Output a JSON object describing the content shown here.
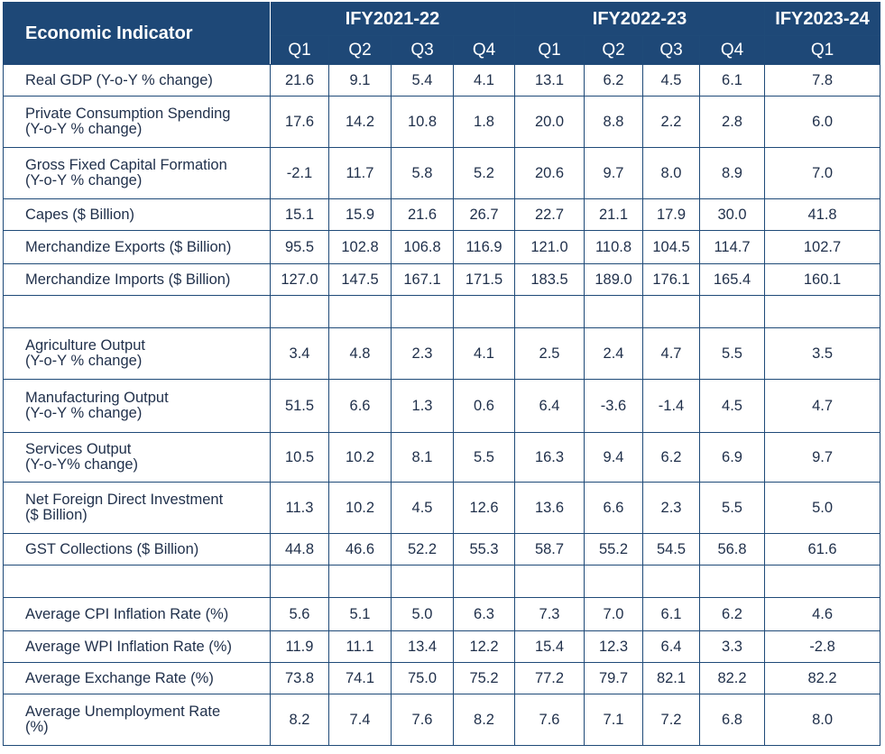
{
  "table": {
    "indicator_header": "Economic Indicator",
    "years": [
      {
        "label": "IFY2021-22",
        "quarters": [
          "Q1",
          "Q2",
          "Q3",
          "Q4"
        ]
      },
      {
        "label": "IFY2022-23",
        "quarters": [
          "Q1",
          "Q2",
          "Q3",
          "Q4"
        ]
      },
      {
        "label": "IFY2023-24",
        "quarters": [
          "Q1"
        ]
      }
    ],
    "rows": [
      {
        "label": [
          "Real GDP (Y-o-Y % change)"
        ],
        "values": [
          "21.6",
          "9.1",
          "5.4",
          "4.1",
          "13.1",
          "6.2",
          "4.5",
          "6.1",
          "7.8"
        ]
      },
      {
        "label": [
          "Private Consumption Spending",
          "(Y-o-Y % change)"
        ],
        "values": [
          "17.6",
          "14.2",
          "10.8",
          "1.8",
          "20.0",
          "8.8",
          "2.2",
          "2.8",
          "6.0"
        ]
      },
      {
        "label": [
          "Gross Fixed Capital Formation",
          "(Y-o-Y % change)"
        ],
        "values": [
          "-2.1",
          "11.7",
          "5.8",
          "5.2",
          "20.6",
          "9.7",
          "8.0",
          "8.9",
          "7.0"
        ]
      },
      {
        "label": [
          "Capes ($ Billion)"
        ],
        "values": [
          "15.1",
          "15.9",
          "21.6",
          "26.7",
          "22.7",
          "21.1",
          "17.9",
          "30.0",
          "41.8"
        ]
      },
      {
        "label": [
          "Merchandize Exports ($ Billion)"
        ],
        "values": [
          "95.5",
          "102.8",
          "106.8",
          "116.9",
          "121.0",
          "110.8",
          "104.5",
          "114.7",
          "102.7"
        ]
      },
      {
        "label": [
          "Merchandize Imports ($ Billion)"
        ],
        "values": [
          "127.0",
          "147.5",
          "167.1",
          "171.5",
          "183.5",
          "189.0",
          "176.1",
          "165.4",
          "160.1"
        ]
      },
      {
        "label": [],
        "values": [
          "",
          "",
          "",
          "",
          "",
          "",
          "",
          "",
          ""
        ]
      },
      {
        "label": [
          "Agriculture Output",
          "(Y-o-Y % change)"
        ],
        "values": [
          "3.4",
          "4.8",
          "2.3",
          "4.1",
          "2.5",
          "2.4",
          "4.7",
          "5.5",
          "3.5"
        ]
      },
      {
        "label": [
          "Manufacturing Output",
          "(Y-o-Y % change)"
        ],
        "values": [
          "51.5",
          "6.6",
          "1.3",
          "0.6",
          "6.4",
          "-3.6",
          "-1.4",
          "4.5",
          "4.7"
        ]
      },
      {
        "label": [
          "Services Output",
          "(Y-o-Y% change)"
        ],
        "values": [
          "10.5",
          "10.2",
          "8.1",
          "5.5",
          "16.3",
          "9.4",
          "6.2",
          "6.9",
          "9.7"
        ]
      },
      {
        "label": [
          "Net Foreign Direct Investment",
          "($ Billion)"
        ],
        "values": [
          "11.3",
          "10.2",
          "4.5",
          "12.6",
          "13.6",
          "6.6",
          "2.3",
          "5.5",
          "5.0"
        ]
      },
      {
        "label": [
          "GST Collections ($ Billion)"
        ],
        "values": [
          "44.8",
          "46.6",
          "52.2",
          "55.3",
          "58.7",
          "55.2",
          "54.5",
          "56.8",
          "61.6"
        ]
      },
      {
        "label": [],
        "values": [
          "",
          "",
          "",
          "",
          "",
          "",
          "",
          "",
          ""
        ]
      },
      {
        "label": [
          "Average CPI Inflation Rate (%)"
        ],
        "values": [
          "5.6",
          "5.1",
          "5.0",
          "6.3",
          "7.3",
          "7.0",
          "6.1",
          "6.2",
          "4.6"
        ]
      },
      {
        "label": [
          "Average WPI Inflation Rate (%)"
        ],
        "values": [
          "11.9",
          "11.1",
          "13.4",
          "12.2",
          "15.4",
          "12.3",
          "6.4",
          "3.3",
          "-2.8"
        ]
      },
      {
        "label": [
          "Average Exchange Rate (%)"
        ],
        "values": [
          "73.8",
          "74.1",
          "75.0",
          "75.2",
          "77.2",
          "79.7",
          "82.1",
          "82.2",
          "82.2"
        ]
      },
      {
        "label": [
          "Average Unemployment Rate",
          "(%)"
        ],
        "values": [
          "8.2",
          "7.4",
          "7.6",
          "8.2",
          "7.6",
          "7.1",
          "7.2",
          "6.8",
          "8.0"
        ]
      }
    ]
  }
}
